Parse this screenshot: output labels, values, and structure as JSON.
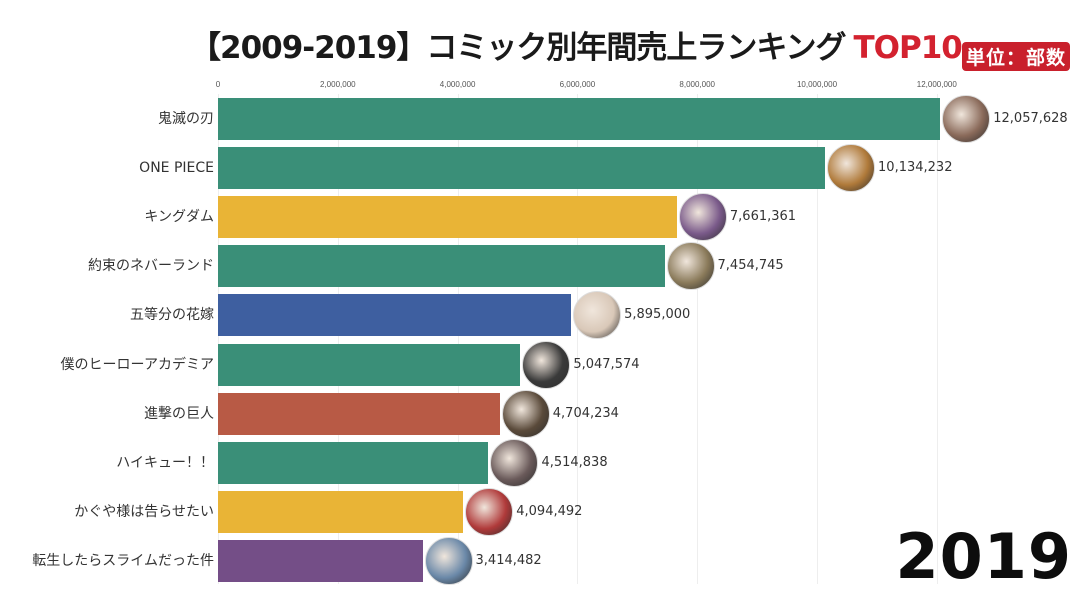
{
  "header": {
    "title_main": "【2009-2019】コミック別年間売上ランキング",
    "title_accent": "TOP10",
    "unit_label": "単位：部数"
  },
  "year_label": "2019",
  "axis": {
    "ticks": [
      "0",
      "2,000,000",
      "4,000,000",
      "6,000,000",
      "8,000,000",
      "10,000,000",
      "12,000,000"
    ]
  },
  "colors": {
    "teal": "#3a8f78",
    "yellow": "#e9b436",
    "blue": "#3e5fa0",
    "red": "#b85a45",
    "purple": "#744e87",
    "title_accent": "#d3222f"
  },
  "rows": [
    {
      "label": "鬼滅の刃",
      "value_text": "12,057,628",
      "value": 12057628,
      "color": "#3a8f78",
      "thumb": "#8a6a5a"
    },
    {
      "label": "ONE PIECE",
      "value_text": "10,134,232",
      "value": 10134232,
      "color": "#3a8f78",
      "thumb": "#b07a3a"
    },
    {
      "label": "キングダム",
      "value_text": "7,661,361",
      "value": 7661361,
      "color": "#e9b436",
      "thumb": "#7a5a8a"
    },
    {
      "label": "約束のネバーランド",
      "value_text": "7,454,745",
      "value": 7454745,
      "color": "#3a8f78",
      "thumb": "#8a7a5a"
    },
    {
      "label": "五等分の花嫁",
      "value_text": "5,895,000",
      "value": 5895000,
      "color": "#3e5fa0",
      "thumb": "#d9c8b8"
    },
    {
      "label": "僕のヒーローアカデミア",
      "value_text": "5,047,574",
      "value": 5047574,
      "color": "#3a8f78",
      "thumb": "#3a3a3a"
    },
    {
      "label": "進撃の巨人",
      "value_text": "4,704,234",
      "value": 4704234,
      "color": "#b85a45",
      "thumb": "#5a4a3a"
    },
    {
      "label": "ハイキュー！！",
      "value_text": "4,514,838",
      "value": 4514838,
      "color": "#3a8f78",
      "thumb": "#6a5a5a"
    },
    {
      "label": "かぐや様は告らせたい",
      "value_text": "4,094,492",
      "value": 4094492,
      "color": "#e9b436",
      "thumb": "#b03a3a"
    },
    {
      "label": "転生したらスライムだった件",
      "value_text": "3,414,482",
      "value": 3414482,
      "color": "#744e87",
      "thumb": "#6a88a8"
    }
  ],
  "chart_data": {
    "type": "bar",
    "orientation": "horizontal",
    "title": "【2009-2019】コミック別年間売上ランキング TOP10",
    "subtitle": "単位：部数",
    "annotation": "2019",
    "xlabel": "",
    "ylabel": "",
    "xlim": [
      0,
      12500000
    ],
    "x_ticks": [
      0,
      2000000,
      4000000,
      6000000,
      8000000,
      10000000,
      12000000
    ],
    "grid": true,
    "categories": [
      "鬼滅の刃",
      "ONE PIECE",
      "キングダム",
      "約束のネバーランド",
      "五等分の花嫁",
      "僕のヒーローアカデミア",
      "進撃の巨人",
      "ハイキュー！！",
      "かぐや様は告らせたい",
      "転生したらスライムだった件"
    ],
    "values": [
      12057628,
      10134232,
      7661361,
      7454745,
      5895000,
      5047574,
      4704234,
      4514838,
      4094492,
      3414482
    ]
  }
}
